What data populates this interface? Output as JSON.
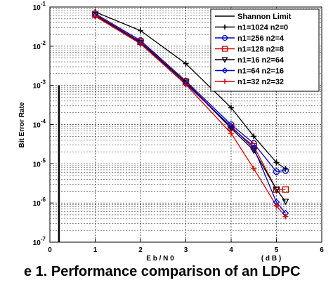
{
  "chart_data": {
    "type": "line",
    "xlabel": "E b / N 0",
    "xunit": "( d B )",
    "ylabel": "Bit Error Rate",
    "xlim": [
      0,
      6
    ],
    "ylim": [
      1e-07,
      0.1
    ],
    "yscale": "log",
    "grid": true,
    "legend_position": "top-right",
    "x_ticks": [
      0,
      1,
      2,
      3,
      4,
      5,
      6
    ],
    "y_ticks": [
      {
        "value": 1e-07,
        "base": "10",
        "exp": "-7"
      },
      {
        "value": 1e-06,
        "base": "10",
        "exp": "-6"
      },
      {
        "value": 1e-05,
        "base": "10",
        "exp": "-5"
      },
      {
        "value": 0.0001,
        "base": "10",
        "exp": "-4"
      },
      {
        "value": 0.001,
        "base": "10",
        "exp": "-3"
      },
      {
        "value": 0.01,
        "base": "10",
        "exp": "-2"
      },
      {
        "value": 0.1,
        "base": "10",
        "exp": "-1"
      }
    ],
    "vertical_line_x": 0.2,
    "series": [
      {
        "name": "Shannon Limit",
        "color": "#000000",
        "marker": "none",
        "x": [],
        "y": []
      },
      {
        "name": "n1=1024 n2=0",
        "color": "#000000",
        "marker": "plus",
        "x": [
          1,
          2,
          3,
          4,
          4.5,
          5,
          5.2
        ],
        "y": [
          0.075,
          0.025,
          0.0036,
          0.00027,
          5e-05,
          1.08e-05,
          7.4e-06
        ]
      },
      {
        "name": "n1=256 n2=4",
        "color": "#0000cc",
        "marker": "circle",
        "x": [
          1,
          2,
          3,
          4,
          4.5,
          5,
          5.2
        ],
        "y": [
          0.068,
          0.014,
          0.0013,
          0.0001,
          3.3e-05,
          6.3e-06,
          6.7e-06
        ]
      },
      {
        "name": "n1=128 n2=8",
        "color": "#cc0000",
        "marker": "square",
        "x": [
          1,
          2,
          3,
          4,
          4.5,
          5,
          5.2
        ],
        "y": [
          0.065,
          0.013,
          0.00125,
          8.5e-05,
          2.8e-05,
          2.2e-06,
          2.2e-06
        ]
      },
      {
        "name": "n1=16 n2=64",
        "color": "#000000",
        "marker": "triangle-down",
        "x": [
          1,
          2,
          3,
          4,
          4.5,
          5,
          5.2
        ],
        "y": [
          0.062,
          0.0125,
          0.0012,
          8e-05,
          2.2e-05,
          2.2e-06,
          1.1e-06
        ]
      },
      {
        "name": "n1=64 n2=16",
        "color": "#0000cc",
        "marker": "diamond",
        "x": [
          1,
          2,
          3,
          4,
          4.5,
          5,
          5.2
        ],
        "y": [
          0.06,
          0.012,
          0.0011,
          9e-05,
          2.5e-05,
          1.05e-06,
          5.5e-07
        ]
      },
      {
        "name": "n1=32 n2=32",
        "color": "#dd0000",
        "marker": "plus",
        "x": [
          1,
          2,
          3,
          4,
          4.5,
          5,
          5.2
        ],
        "y": [
          0.058,
          0.0115,
          0.00105,
          6e-05,
          7.5e-06,
          8.5e-07,
          4.5e-07
        ]
      }
    ]
  },
  "caption": "e 1. Performance comparison of an LDPC"
}
